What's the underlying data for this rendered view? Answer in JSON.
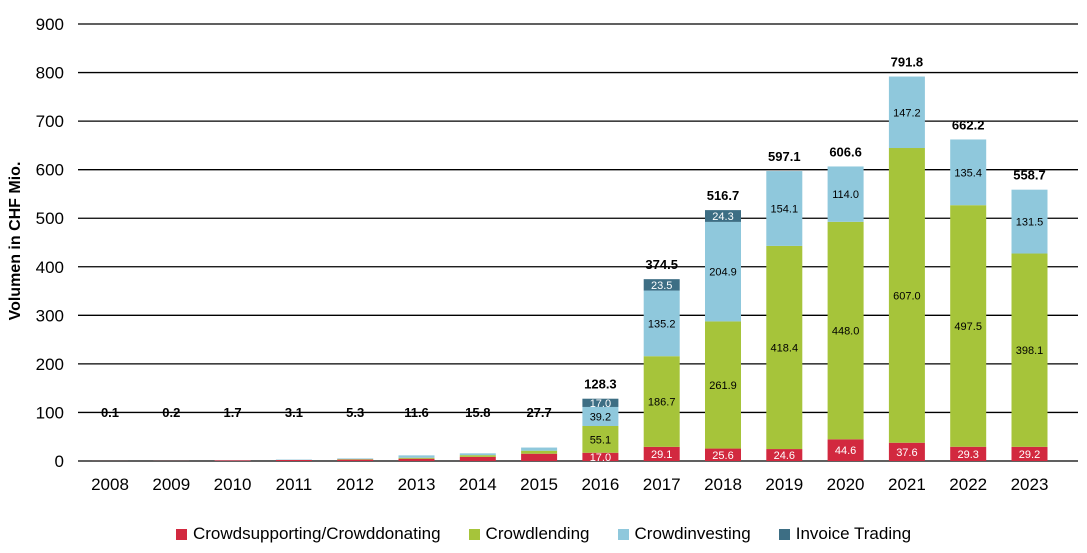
{
  "chart_data": {
    "type": "bar",
    "stacked": true,
    "ylabel": "Volumen in CHF Mio.",
    "ylim": [
      0,
      900
    ],
    "yticks": [
      0,
      100,
      200,
      300,
      400,
      500,
      600,
      700,
      800,
      900
    ],
    "grid": true,
    "legend_position": "bottom",
    "categories": [
      "2008",
      "2009",
      "2010",
      "2011",
      "2012",
      "2013",
      "2014",
      "2015",
      "2016",
      "2017",
      "2018",
      "2019",
      "2020",
      "2021",
      "2022",
      "2023"
    ],
    "totals": [
      0.1,
      0.2,
      1.7,
      3.1,
      5.3,
      11.6,
      15.8,
      27.7,
      128.3,
      374.5,
      516.7,
      597.1,
      606.6,
      791.8,
      662.2,
      558.7
    ],
    "total_labels": [
      "0.1",
      "0.2",
      "1.7",
      "3.1",
      "5.3",
      "11.6",
      "15.8",
      "27.7",
      "128.3",
      "374.5",
      "516.7",
      "597.1",
      "606.6",
      "791.8",
      "662.2",
      "558.7"
    ],
    "series": [
      {
        "name": "Crowdsupporting/Crowddonating",
        "color": "#d2293f",
        "label_color": "#ffffff",
        "values": [
          0.1,
          0.2,
          1.4,
          2.2,
          2.9,
          4.7,
          8.5,
          15.0,
          17.0,
          29.1,
          25.6,
          24.6,
          44.6,
          37.6,
          29.3,
          29.2
        ],
        "labels": [
          "",
          "",
          "",
          "",
          "",
          "",
          "",
          "",
          "17.0",
          "29.1",
          "25.6",
          "24.6",
          "44.6",
          "37.6",
          "29.3",
          "29.2"
        ]
      },
      {
        "name": "Crowdlending",
        "color": "#a6c43a",
        "label_color": "#000000",
        "values": [
          0,
          0,
          0,
          0,
          1.0,
          2.0,
          3.5,
          6.2,
          55.1,
          186.7,
          261.9,
          418.4,
          448.0,
          607.0,
          497.5,
          398.1
        ],
        "labels": [
          "",
          "",
          "",
          "",
          "",
          "",
          "",
          "",
          "55.1",
          "186.7",
          "261.9",
          "418.4",
          "448.0",
          "607.0",
          "497.5",
          "398.1"
        ]
      },
      {
        "name": "Crowdinvesting",
        "color": "#8fc8dc",
        "label_color": "#000000",
        "values": [
          0,
          0,
          0.3,
          0.9,
          1.4,
          4.9,
          3.8,
          6.5,
          39.2,
          135.2,
          204.9,
          154.1,
          114.0,
          147.2,
          135.4,
          131.5
        ],
        "labels": [
          "",
          "",
          "",
          "",
          "",
          "",
          "",
          "",
          "39.2",
          "135.2",
          "204.9",
          "154.1",
          "114.0",
          "147.2",
          "135.4",
          "131.5"
        ]
      },
      {
        "name": "Invoice Trading",
        "color": "#3d6e84",
        "label_color": "#ffffff",
        "values": [
          0,
          0,
          0,
          0,
          0,
          0,
          0,
          0,
          17.0,
          23.5,
          24.3,
          0,
          0,
          0,
          0,
          0
        ],
        "labels": [
          "",
          "",
          "",
          "",
          "",
          "",
          "",
          "",
          "17.0",
          "23.5",
          "24.3",
          "",
          "",
          "",
          "",
          ""
        ]
      }
    ]
  }
}
